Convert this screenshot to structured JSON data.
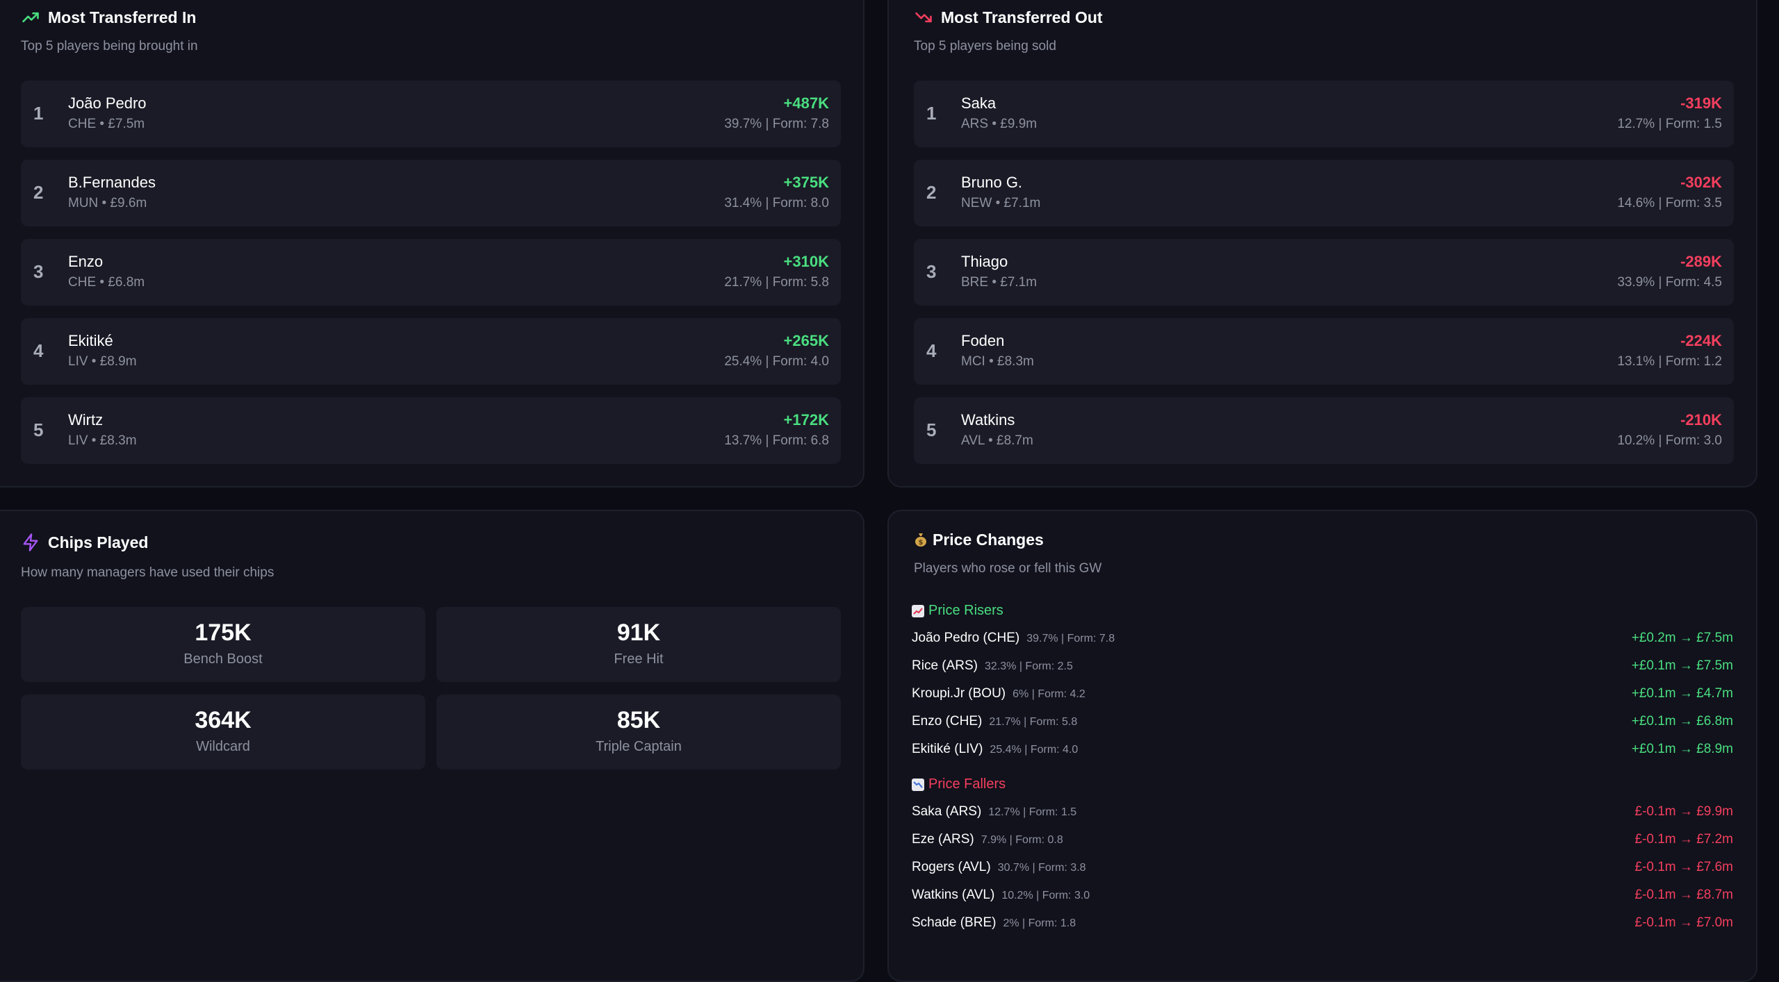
{
  "transferred_in": {
    "title": "Most Transferred In",
    "subtitle": "Top 5 players being brought in",
    "rows": [
      {
        "rank": "1",
        "name": "João Pedro",
        "meta": "CHE • £7.5m",
        "delta": "+487K",
        "stats": "39.7% | Form: 7.8"
      },
      {
        "rank": "2",
        "name": "B.Fernandes",
        "meta": "MUN • £9.6m",
        "delta": "+375K",
        "stats": "31.4% | Form: 8.0"
      },
      {
        "rank": "3",
        "name": "Enzo",
        "meta": "CHE • £6.8m",
        "delta": "+310K",
        "stats": "21.7% | Form: 5.8"
      },
      {
        "rank": "4",
        "name": "Ekitiké",
        "meta": "LIV • £8.9m",
        "delta": "+265K",
        "stats": "25.4% | Form: 4.0"
      },
      {
        "rank": "5",
        "name": "Wirtz",
        "meta": "LIV • £8.3m",
        "delta": "+172K",
        "stats": "13.7% | Form: 6.8"
      }
    ]
  },
  "transferred_out": {
    "title": "Most Transferred Out",
    "subtitle": "Top 5 players being sold",
    "rows": [
      {
        "rank": "1",
        "name": "Saka",
        "meta": "ARS • £9.9m",
        "delta": "-319K",
        "stats": "12.7% | Form: 1.5"
      },
      {
        "rank": "2",
        "name": "Bruno G.",
        "meta": "NEW • £7.1m",
        "delta": "-302K",
        "stats": "14.6% | Form: 3.5"
      },
      {
        "rank": "3",
        "name": "Thiago",
        "meta": "BRE • £7.1m",
        "delta": "-289K",
        "stats": "33.9% | Form: 4.5"
      },
      {
        "rank": "4",
        "name": "Foden",
        "meta": "MCI • £8.3m",
        "delta": "-224K",
        "stats": "13.1% | Form: 1.2"
      },
      {
        "rank": "5",
        "name": "Watkins",
        "meta": "AVL • £8.7m",
        "delta": "-210K",
        "stats": "10.2% | Form: 3.0"
      }
    ]
  },
  "chips": {
    "title": "Chips Played",
    "subtitle": "How many managers have used their chips",
    "items": [
      {
        "value": "175K",
        "label": "Bench Boost"
      },
      {
        "value": "91K",
        "label": "Free Hit"
      },
      {
        "value": "364K",
        "label": "Wildcard"
      },
      {
        "value": "85K",
        "label": "Triple Captain"
      }
    ]
  },
  "price_changes": {
    "title": "Price Changes",
    "subtitle": "Players who rose or fell this GW",
    "risers_label": "Price Risers",
    "fallers_label": "Price Fallers",
    "risers": [
      {
        "name": "João Pedro (CHE)",
        "stats": "39.7% | Form: 7.8",
        "change": "+£0.2m → £7.5m"
      },
      {
        "name": "Rice (ARS)",
        "stats": "32.3% | Form: 2.5",
        "change": "+£0.1m → £7.5m"
      },
      {
        "name": "Kroupi.Jr (BOU)",
        "stats": "6% | Form: 4.2",
        "change": "+£0.1m → £4.7m"
      },
      {
        "name": "Enzo (CHE)",
        "stats": "21.7% | Form: 5.8",
        "change": "+£0.1m → £6.8m"
      },
      {
        "name": "Ekitiké (LIV)",
        "stats": "25.4% | Form: 4.0",
        "change": "+£0.1m → £8.9m"
      }
    ],
    "fallers": [
      {
        "name": "Saka (ARS)",
        "stats": "12.7% | Form: 1.5",
        "change": "£-0.1m → £9.9m"
      },
      {
        "name": "Eze (ARS)",
        "stats": "7.9% | Form: 0.8",
        "change": "£-0.1m → £7.2m"
      },
      {
        "name": "Rogers (AVL)",
        "stats": "30.7% | Form: 3.8",
        "change": "£-0.1m → £7.6m"
      },
      {
        "name": "Watkins (AVL)",
        "stats": "10.2% | Form: 3.0",
        "change": "£-0.1m → £8.7m"
      },
      {
        "name": "Schade (BRE)",
        "stats": "2% | Form: 1.8",
        "change": "£-0.1m → £7.0m"
      }
    ]
  },
  "colors": {
    "positive": "#4ade80",
    "negative": "#f43f5e",
    "chip_icon": "#a855f7"
  }
}
